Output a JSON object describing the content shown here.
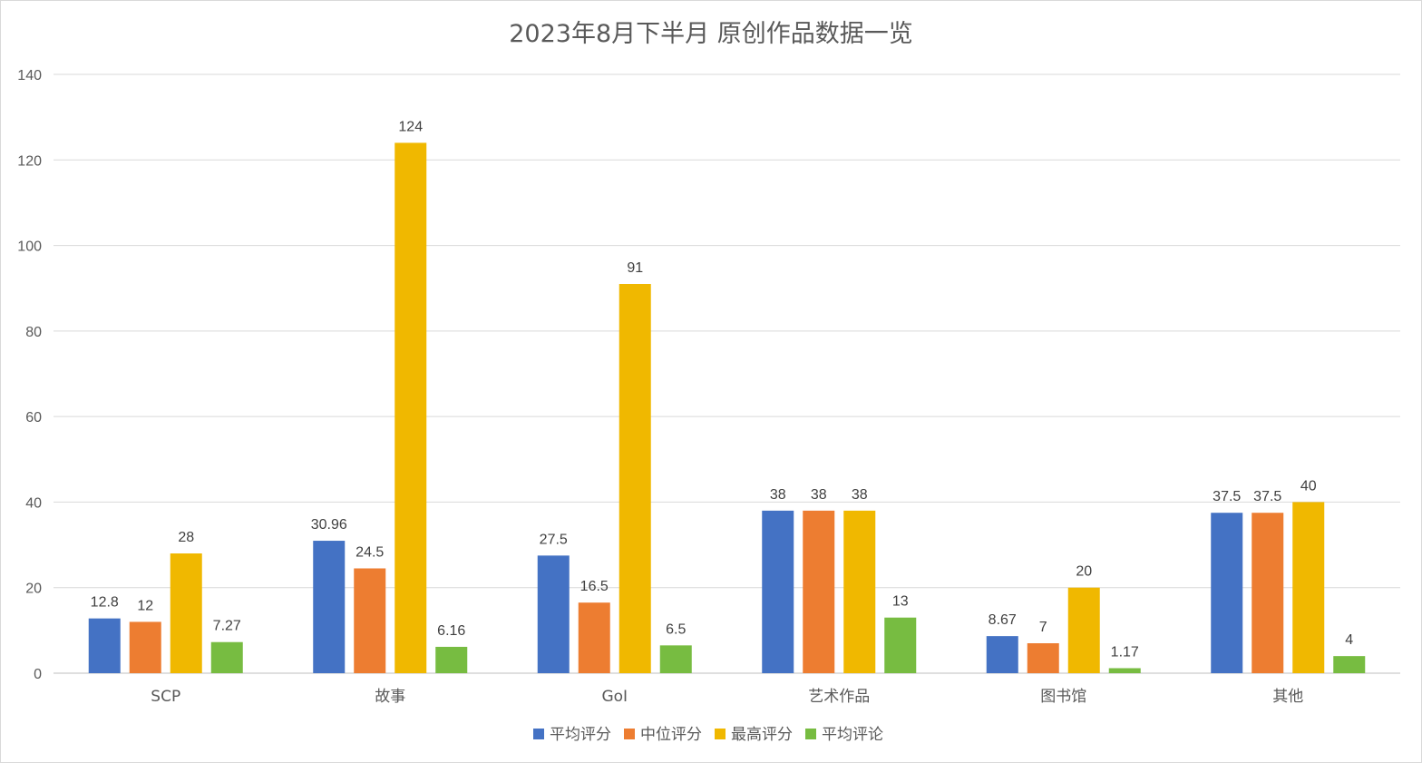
{
  "chart_data": {
    "type": "bar",
    "title": "2023年8月下半月 原创作品数据一览",
    "xlabel": "",
    "ylabel": "",
    "ylim": [
      0,
      140
    ],
    "yticks": [
      0,
      20,
      40,
      60,
      80,
      100,
      120,
      140
    ],
    "grid": true,
    "legend_position": "bottom",
    "categories": [
      "SCP",
      "故事",
      "GoI",
      "艺术作品",
      "图书馆",
      "其他"
    ],
    "series": [
      {
        "name": "平均评分",
        "color": "#4472C4",
        "values": [
          12.8,
          30.96,
          27.5,
          38,
          8.67,
          37.5
        ],
        "labels": [
          "12.8",
          "30.96",
          "27.5",
          "38",
          "8.67",
          "37.5"
        ]
      },
      {
        "name": "中位评分",
        "color": "#ED7D31",
        "values": [
          12,
          24.5,
          16.5,
          38,
          7,
          37.5
        ],
        "labels": [
          "12",
          "24.5",
          "16.5",
          "38",
          "7",
          "37.5"
        ]
      },
      {
        "name": "最高评分",
        "color": "#F0B800",
        "values": [
          28,
          124,
          91,
          38,
          20,
          40
        ],
        "labels": [
          "28",
          "124",
          "91",
          "38",
          "20",
          "40"
        ]
      },
      {
        "name": "平均评论",
        "color": "#77BC41",
        "values": [
          7.27,
          6.16,
          6.5,
          13,
          1.17,
          4
        ],
        "labels": [
          "7.27",
          "6.16",
          "6.5",
          "13",
          "1.17",
          "4"
        ]
      }
    ]
  }
}
